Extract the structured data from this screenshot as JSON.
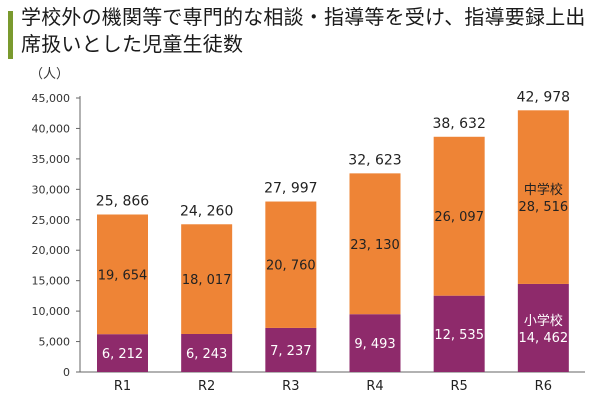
{
  "chart_data": {
    "type": "bar",
    "stacked": true,
    "title": "学校外の機関等で専門的な相談・指導等を受け、指導要録上出席扱いとした児童生徒数",
    "ylabel": "（人）",
    "xlabel": "",
    "ylim": [
      0,
      45000
    ],
    "yticks": [
      "0",
      "5,000",
      "10,000",
      "15,000",
      "20,000",
      "25,000",
      "30,000",
      "35,000",
      "40,000",
      "45,000"
    ],
    "categories": [
      "R1",
      "R2",
      "R3",
      "R4",
      "R5",
      "R6"
    ],
    "series": [
      {
        "name": "小学校",
        "color": "#8e2a6b",
        "label_color": "#ffffff",
        "values": [
          6212,
          6243,
          7237,
          9493,
          12535,
          14462
        ],
        "value_labels": [
          "6, 212",
          "6, 243",
          "7, 237",
          "9, 493",
          "12, 535",
          "14, 462"
        ]
      },
      {
        "name": "中学校",
        "color": "#ee8436",
        "label_color": "#222222",
        "values": [
          19654,
          18017,
          20760,
          23130,
          26097,
          28516
        ],
        "value_labels": [
          "19, 654",
          "18, 017",
          "20, 760",
          "23, 130",
          "26, 097",
          "28, 516"
        ]
      }
    ],
    "totals": [
      25866,
      24260,
      27997,
      32623,
      38632,
      42978
    ],
    "total_labels": [
      "25, 866",
      "24, 260",
      "27, 997",
      "32, 623",
      "38, 632",
      "42, 978"
    ],
    "series_name_in_last_bar": true,
    "grid": false,
    "legend": "inside-last-bar",
    "colors": {
      "title_bar": "#7a9a2e",
      "axis": "#666666"
    }
  }
}
